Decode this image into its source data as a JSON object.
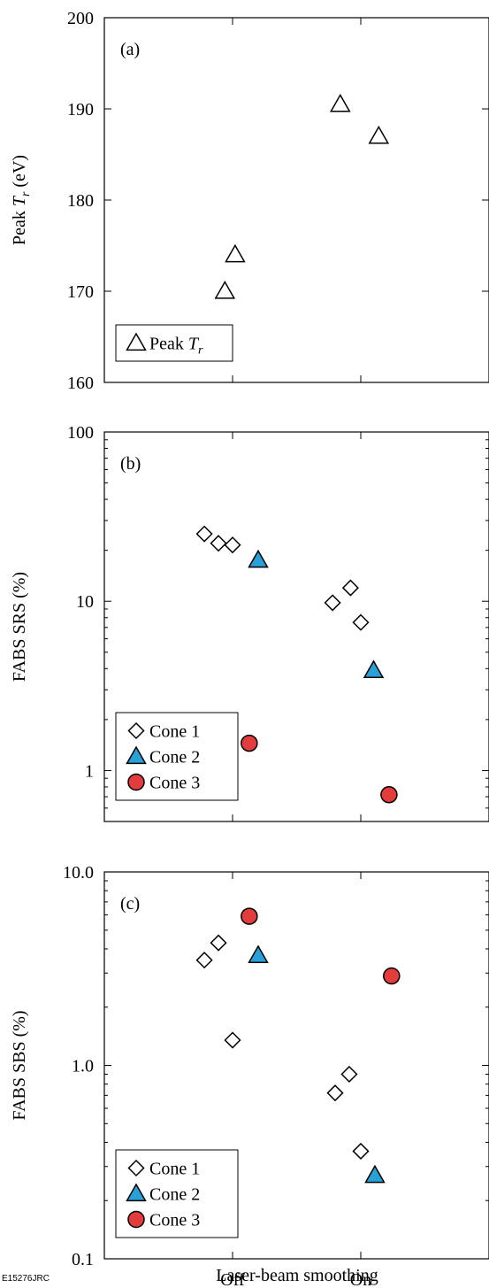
{
  "figure_id": "E15276JRC",
  "chart_data": [
    {
      "type": "scatter",
      "panel_label": "(a)",
      "ylabel": "Peak T_r (eV)",
      "ylabel_main": "Peak ",
      "ylabel_sym": "T",
      "ylabel_sub": "r",
      "ylabel_unit": " (eV)",
      "yscale": "linear",
      "ylim": [
        160,
        200
      ],
      "yticks": [
        160,
        170,
        180,
        190,
        200
      ],
      "ytick_labels": [
        "160",
        "170",
        "180",
        "190",
        "200"
      ],
      "categories": [
        "Off",
        "On"
      ],
      "legend": {
        "position": "bottom-left",
        "entries": [
          {
            "label_main": "Peak ",
            "label_sym": "T",
            "label_sub": "r",
            "marker": "triangle-open"
          }
        ]
      },
      "series": [
        {
          "name": "Peak T_r",
          "marker": "triangle-open",
          "color": "#ffffff",
          "points": [
            {
              "x": "Off",
              "offset": -0.06,
              "y": 170
            },
            {
              "x": "Off",
              "offset": 0.02,
              "y": 174
            },
            {
              "x": "On",
              "offset": -0.16,
              "y": 190.5
            },
            {
              "x": "On",
              "offset": 0.14,
              "y": 187
            }
          ]
        }
      ]
    },
    {
      "type": "scatter",
      "panel_label": "(b)",
      "ylabel": "FABS SRS (%)",
      "yscale": "log",
      "ylim": [
        0.5,
        100
      ],
      "yticks": [
        1,
        10,
        100
      ],
      "ytick_labels": [
        "1",
        "10",
        "100"
      ],
      "categories": [
        "Off",
        "On"
      ],
      "legend": {
        "position": "bottom-left",
        "entries": [
          {
            "label": "Cone 1",
            "marker": "diamond-open"
          },
          {
            "label": "Cone 2",
            "marker": "triangle-filled"
          },
          {
            "label": "Cone 3",
            "marker": "circle-filled"
          }
        ]
      },
      "series": [
        {
          "name": "Cone 1",
          "marker": "diamond-open",
          "color": "#ffffff",
          "points": [
            {
              "x": "Off",
              "offset": -0.22,
              "y": 25
            },
            {
              "x": "Off",
              "offset": -0.11,
              "y": 22
            },
            {
              "x": "Off",
              "offset": 0.0,
              "y": 21.5
            },
            {
              "x": "On",
              "offset": -0.22,
              "y": 9.8
            },
            {
              "x": "On",
              "offset": -0.08,
              "y": 12
            },
            {
              "x": "On",
              "offset": 0.0,
              "y": 7.5
            }
          ]
        },
        {
          "name": "Cone 2",
          "marker": "triangle-filled",
          "color": "#2aa0d8",
          "points": [
            {
              "x": "Off",
              "offset": 0.2,
              "y": 17.5
            },
            {
              "x": "On",
              "offset": 0.1,
              "y": 3.9
            }
          ]
        },
        {
          "name": "Cone 3",
          "marker": "circle-filled",
          "color": "#e23c3c",
          "points": [
            {
              "x": "Off",
              "offset": 0.13,
              "y": 1.45
            },
            {
              "x": "On",
              "offset": 0.22,
              "y": 0.72
            }
          ]
        }
      ]
    },
    {
      "type": "scatter",
      "panel_label": "(c)",
      "ylabel": "FABS SBS (%)",
      "yscale": "log",
      "ylim": [
        0.1,
        10
      ],
      "yticks": [
        0.1,
        1,
        10
      ],
      "ytick_labels": [
        "0.1",
        "1.0",
        "10.0"
      ],
      "categories": [
        "Off",
        "On"
      ],
      "xlabel": "Laser-beam smoothing",
      "legend": {
        "position": "bottom-left",
        "entries": [
          {
            "label": "Cone 1",
            "marker": "diamond-open"
          },
          {
            "label": "Cone 2",
            "marker": "triangle-filled"
          },
          {
            "label": "Cone 3",
            "marker": "circle-filled"
          }
        ]
      },
      "series": [
        {
          "name": "Cone 1",
          "marker": "diamond-open",
          "color": "#ffffff",
          "points": [
            {
              "x": "Off",
              "offset": -0.22,
              "y": 3.5
            },
            {
              "x": "Off",
              "offset": -0.11,
              "y": 4.3
            },
            {
              "x": "Off",
              "offset": 0.0,
              "y": 1.35
            },
            {
              "x": "On",
              "offset": -0.2,
              "y": 0.72
            },
            {
              "x": "On",
              "offset": -0.09,
              "y": 0.9
            },
            {
              "x": "On",
              "offset": 0.0,
              "y": 0.36
            }
          ]
        },
        {
          "name": "Cone 2",
          "marker": "triangle-filled",
          "color": "#2aa0d8",
          "points": [
            {
              "x": "Off",
              "offset": 0.2,
              "y": 3.7
            },
            {
              "x": "On",
              "offset": 0.11,
              "y": 0.27
            }
          ]
        },
        {
          "name": "Cone 3",
          "marker": "circle-filled",
          "color": "#e23c3c",
          "points": [
            {
              "x": "Off",
              "offset": 0.13,
              "y": 5.9
            },
            {
              "x": "On",
              "offset": 0.24,
              "y": 2.9
            }
          ]
        }
      ]
    }
  ]
}
